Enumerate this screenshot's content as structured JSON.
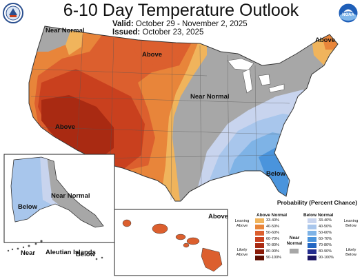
{
  "title": "6-10 Day Temperature Outlook",
  "valid_label": "Valid:",
  "valid_value": "October 29 - November 2, 2025",
  "issued_label": "Issued:",
  "issued_value": "October 23, 2025",
  "logos": {
    "left": "doc-seal-icon",
    "right": "noaa-logo-icon",
    "right_text": "NOAA"
  },
  "colors": {
    "above_33": "#f0b45c",
    "above_40": "#e8853a",
    "above_50": "#dc5f2e",
    "above_60": "#c9401e",
    "above_70": "#a92a12",
    "above_80": "#8a1b08",
    "above_90": "#5e0f02",
    "below_33": "#c8d4ee",
    "below_40": "#a8c6ec",
    "below_50": "#7eb3e6",
    "below_60": "#4a94dc",
    "below_70": "#2366c2",
    "below_80": "#232c8e",
    "below_90": "#1b1462",
    "near_normal": "#a7a7a7"
  },
  "map_labels": {
    "near_normal_nw": "Near Normal",
    "above_north": "Above",
    "above_ne": "Above",
    "near_normal_central": "Near Normal",
    "above_sw": "Above",
    "below_se": "Below",
    "ak_below": "Below",
    "ak_near_normal": "Near Normal",
    "ak_near_sw": "Near",
    "aleutian": "Aleutian Islands",
    "ak_below_aleut": "Below",
    "hi_above": "Above"
  },
  "legend": {
    "title": "Probability (Percent Chance)",
    "above_head": "Above Normal",
    "below_head": "Below Normal",
    "near_normal": "Near Normal",
    "above_side_top": "Leaning Above",
    "above_side_bottom": "Likely Above",
    "below_side_top": "Leaning Below",
    "below_side_bottom": "Likely Below",
    "ranges": [
      "33-40%",
      "40-50%",
      "50-60%",
      "60-70%",
      "70-80%",
      "80-90%",
      "90-100%"
    ]
  }
}
